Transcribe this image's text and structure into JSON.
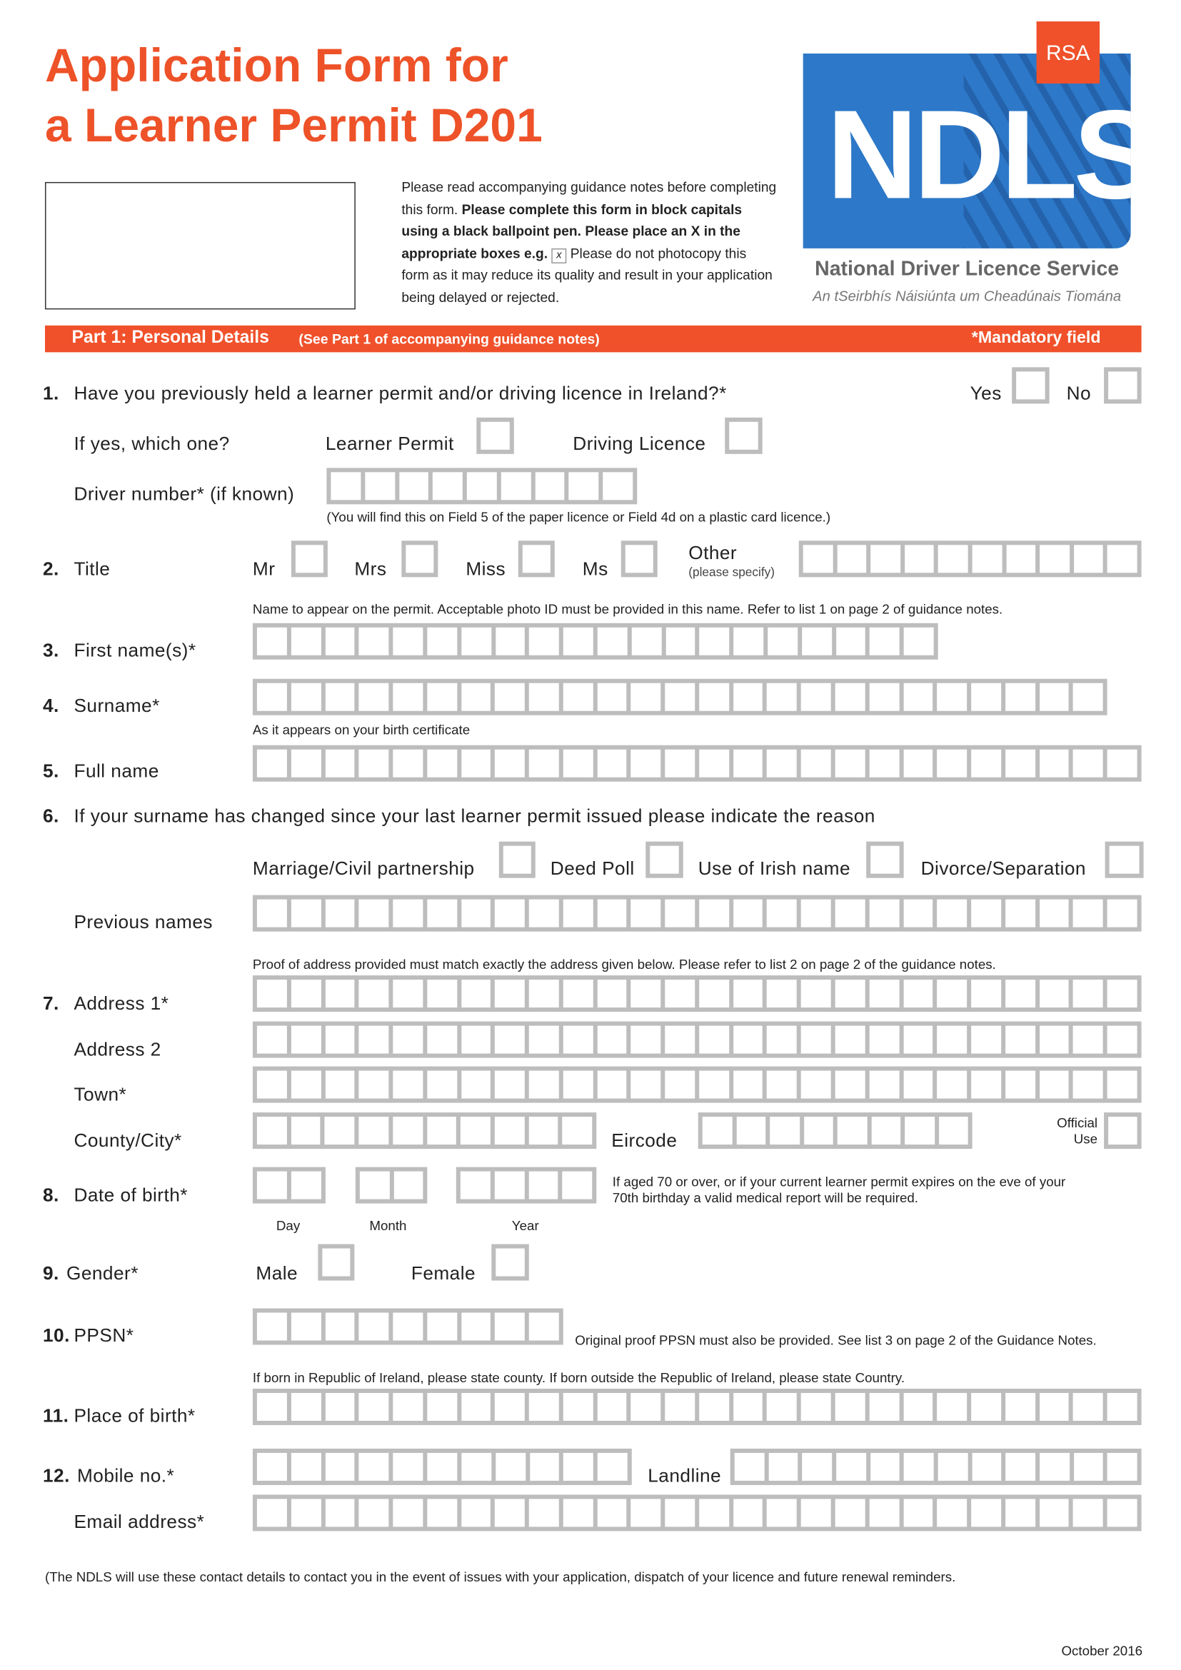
{
  "header": {
    "title_line1": "Application Form for",
    "title_line2": "a Learner Permit D201",
    "instructions": {
      "p1": "Please read accompanying guidance notes before completing this form. ",
      "bold": "Please complete this form in block capitals using a black ballpoint pen. Please place an X in the appropriate boxes e.g. ",
      "example_mark": "x",
      "p2": " Please do not photocopy this form as it may reduce its quality and result in your application being delayed or rejected."
    },
    "logo": {
      "rsa": "RSA",
      "ndls": "NDLS",
      "service": "National Driver Licence Service",
      "service_irish": "An tSeirbhís Náisiúnta um Cheadúnais Tiomána",
      "blue": "#2d78c8",
      "orange": "#f0512a"
    }
  },
  "section": {
    "title": "Part 1: Personal Details",
    "subtitle": "(See Part 1 of accompanying guidance notes)",
    "mandatory": "*Mandatory field"
  },
  "q1": {
    "num": "1.",
    "question": "Have you previously held a learner permit and/or driving licence in Ireland?*",
    "yes": "Yes",
    "no": "No",
    "which": "If yes, which one?",
    "learner": "Learner Permit",
    "licence": "Driving Licence",
    "driver_number": "Driver number* (if known)",
    "driver_note": "(You will find this on Field 5 of the paper licence or Field 4d on a plastic card licence.)"
  },
  "q2": {
    "num": "2.",
    "label": "Title",
    "mr": "Mr",
    "mrs": "Mrs",
    "miss": "Miss",
    "ms": "Ms",
    "other": "Other",
    "other_note": "(please specify)"
  },
  "name_note": "Name to appear on the permit. Acceptable photo ID must be provided in this name. Refer to list 1 on page 2 of guidance notes.",
  "q3": {
    "num": "3.",
    "label": "First name(s)*"
  },
  "q4": {
    "num": "4.",
    "label": "Surname*"
  },
  "birth_cert_note": "As it appears on your birth certificate",
  "q5": {
    "num": "5.",
    "label": "Full name"
  },
  "q6": {
    "num": "6.",
    "label": "If your surname has changed since your last learner permit issued please indicate the reason",
    "marriage": "Marriage/Civil partnership",
    "deed": "Deed Poll",
    "irish": "Use of Irish name",
    "divorce": "Divorce/Separation",
    "previous": "Previous names"
  },
  "address_note": "Proof of address provided must match exactly the address given below. Please refer to list 2 on page 2 of the guidance notes.",
  "q7": {
    "num": "7.",
    "address1": "Address 1*",
    "address2": "Address 2",
    "town": "Town*",
    "county": "County/City*",
    "eircode": "Eircode",
    "official1": "Official",
    "official2": "Use"
  },
  "q8": {
    "num": "8.",
    "label": "Date of birth*",
    "day": "Day",
    "month": "Month",
    "year": "Year",
    "note1": "If aged 70 or over, or if your current learner permit expires on the eve of your",
    "note2": "70th birthday a valid medical report will be required."
  },
  "q9": {
    "num": "9.",
    "label": "Gender*",
    "male": "Male",
    "female": "Female"
  },
  "q10": {
    "num": "10.",
    "label": "PPSN*",
    "note": "Original proof PPSN must also be provided. See list 3 on page 2 of the Guidance Notes."
  },
  "birth_place_note": "If born in Republic of Ireland, please state county. If born outside the Republic of Ireland, please state Country.",
  "q11": {
    "num": "11.",
    "label": "Place of birth*"
  },
  "q12": {
    "num": "12.",
    "mobile": "Mobile no.*",
    "landline": "Landline",
    "email": "Email address*"
  },
  "footer": {
    "note": "(The NDLS will use these contact details to contact you in the event of issues with your application, dispatch of your licence and future renewal reminders.",
    "date": "October 2016"
  }
}
